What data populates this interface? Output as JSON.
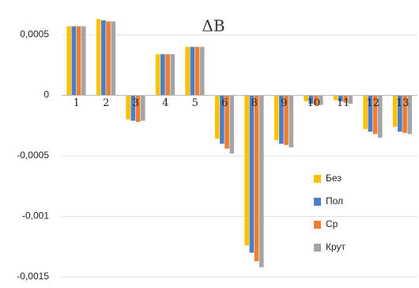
{
  "chart_data": {
    "type": "bar",
    "title": "ΔB",
    "categories": [
      "1",
      "2",
      "3",
      "4",
      "5",
      "6",
      "8",
      "9",
      "10",
      "11",
      "12",
      "13"
    ],
    "series": [
      {
        "name": "Без",
        "color": "#ffc000",
        "values": [
          0.00057,
          0.00063,
          -0.0002,
          0.00034,
          0.0004,
          -0.00036,
          -0.00124,
          -0.00037,
          -5e-05,
          -4e-05,
          -0.00028,
          -0.00026
        ]
      },
      {
        "name": "Пол",
        "color": "#4a7ec9",
        "values": [
          0.00057,
          0.00062,
          -0.00021,
          0.00034,
          0.0004,
          -0.0004,
          -0.0013,
          -0.0004,
          -7e-05,
          -5e-05,
          -0.0003,
          -0.0003
        ]
      },
      {
        "name": "Ср",
        "color": "#ed7d31",
        "values": [
          0.00057,
          0.00061,
          -0.00022,
          0.00034,
          0.0004,
          -0.00044,
          -0.00137,
          -0.00041,
          -8e-05,
          -6e-05,
          -0.00032,
          -0.00031
        ]
      },
      {
        "name": "Крут",
        "color": "#a5a5a5",
        "values": [
          0.00057,
          0.00061,
          -0.00021,
          0.00034,
          0.0004,
          -0.00048,
          -0.00142,
          -0.00043,
          -8e-05,
          -7e-05,
          -0.00035,
          -0.00032
        ]
      }
    ],
    "ylim": [
      -0.0015,
      0.00065
    ],
    "yticks": [
      {
        "value": 0.0005,
        "label": "0,0005"
      },
      0,
      {
        "value": -0.0005,
        "label": "-0,0005"
      },
      {
        "value": -0.001,
        "label": "-0,001"
      },
      {
        "value": -0.0015,
        "label": "-0,0015"
      }
    ],
    "grid": true,
    "legend": "lower right"
  }
}
